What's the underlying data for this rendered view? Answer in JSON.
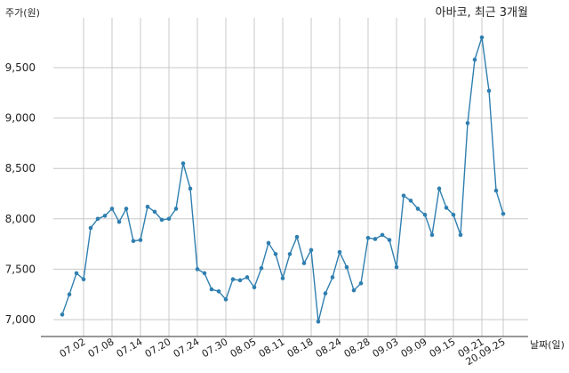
{
  "chart_data": {
    "type": "line",
    "title": "아바코, 최근 3개월",
    "ylabel": "주가(원)",
    "xlabel": "날짜(일)",
    "ylim": [
      6850,
      9900
    ],
    "yticks": [
      7000,
      7500,
      8000,
      8500,
      9000,
      9500
    ],
    "ytick_labels": [
      "7,000",
      "7,500",
      "8,000",
      "8,500",
      "9,000",
      "9,500"
    ],
    "grid": true,
    "x_tick_labels": [
      "07.02",
      "07.08",
      "07.14",
      "07.20",
      "07.24",
      "07.30",
      "08.05",
      "08.11",
      "08.18",
      "08.24",
      "08.28",
      "09.03",
      "09.09",
      "09.15",
      "09.21",
      "20.09.25"
    ],
    "x_tick_index": [
      3,
      7,
      11,
      15,
      19,
      23,
      27,
      31,
      35,
      39,
      43,
      47,
      51,
      55,
      59,
      62
    ],
    "color": "#2f7fb0",
    "series": [
      {
        "values": [
          7050,
          7250,
          7460,
          7400,
          7910,
          8000,
          8030,
          8100,
          7970,
          8100,
          7780,
          7790,
          8120,
          8070,
          7990,
          8000,
          8100,
          8550,
          8300,
          7500,
          7460,
          7300,
          7280,
          7200,
          7400,
          7390,
          7420,
          7320,
          7510,
          7760,
          7650,
          7410,
          7650,
          7820,
          7560,
          7690,
          6980,
          7260,
          7420,
          7670,
          7520,
          7290,
          7360,
          7810,
          7800,
          7840,
          7790,
          7520,
          8230,
          8180,
          8100,
          8040,
          7840,
          8300,
          8110,
          8040,
          7840,
          8950,
          9580,
          9800,
          9270,
          8280,
          8050
        ]
      }
    ]
  }
}
